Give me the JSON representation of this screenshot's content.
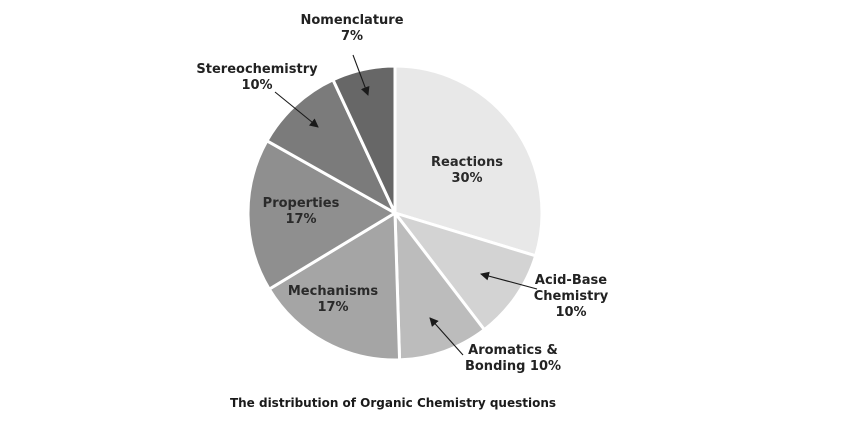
{
  "chart_data": {
    "type": "pie",
    "caption": "The distribution of Organic Chemistry questions",
    "slices": [
      {
        "name": "Reactions",
        "lines": [
          "Reactions",
          "30%"
        ],
        "value": 30,
        "color": "#e8e8e8",
        "label_mode": "inside"
      },
      {
        "name": "Acid-Base Chemistry",
        "lines": [
          "Acid-Base",
          "Chemistry",
          "10%"
        ],
        "value": 10,
        "color": "#d3d3d3",
        "label_mode": "arrow"
      },
      {
        "name": "Aromatics & Bonding",
        "lines": [
          "Aromatics &",
          "Bonding 10%"
        ],
        "value": 10,
        "color": "#bcbcbc",
        "label_mode": "arrow"
      },
      {
        "name": "Mechanisms",
        "lines": [
          "Mechanisms",
          "17%"
        ],
        "value": 17,
        "color": "#a5a5a5",
        "label_mode": "inside"
      },
      {
        "name": "Properties",
        "lines": [
          "Properties",
          "17%"
        ],
        "value": 17,
        "color": "#8f8f8f",
        "label_mode": "inside"
      },
      {
        "name": "Stereochemistry",
        "lines": [
          "Stereochemistry",
          "10%"
        ],
        "value": 10,
        "color": "#7b7b7b",
        "label_mode": "arrow"
      },
      {
        "name": "Nomenclature",
        "lines": [
          "Nomenclature",
          "7%"
        ],
        "value": 7,
        "color": "#676767",
        "label_mode": "arrow"
      }
    ],
    "start": "12 o'clock",
    "direction": "clockwise",
    "legend": "none"
  }
}
